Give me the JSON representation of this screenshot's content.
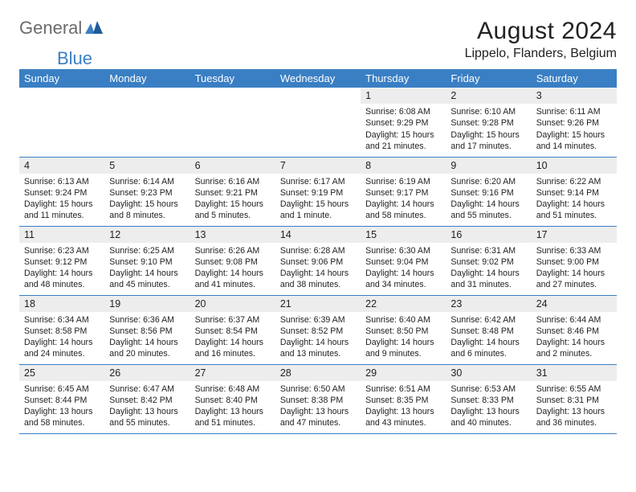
{
  "logo": {
    "general": "General",
    "blue": "Blue"
  },
  "header": {
    "title": "August 2024",
    "location": "Lippelo, Flanders, Belgium"
  },
  "colors": {
    "accent": "#3a7fc4",
    "header_bg": "#3a7fc4",
    "day_num_bg": "#ededed",
    "text": "#222222",
    "logo_gray": "#6b6b6b",
    "logo_blue": "#3a7fc4"
  },
  "weekdays": [
    "Sunday",
    "Monday",
    "Tuesday",
    "Wednesday",
    "Thursday",
    "Friday",
    "Saturday"
  ],
  "first_weekday_index": 4,
  "days": [
    {
      "n": 1,
      "sunrise": "6:08 AM",
      "sunset": "9:29 PM",
      "daylight": "15 hours and 21 minutes."
    },
    {
      "n": 2,
      "sunrise": "6:10 AM",
      "sunset": "9:28 PM",
      "daylight": "15 hours and 17 minutes."
    },
    {
      "n": 3,
      "sunrise": "6:11 AM",
      "sunset": "9:26 PM",
      "daylight": "15 hours and 14 minutes."
    },
    {
      "n": 4,
      "sunrise": "6:13 AM",
      "sunset": "9:24 PM",
      "daylight": "15 hours and 11 minutes."
    },
    {
      "n": 5,
      "sunrise": "6:14 AM",
      "sunset": "9:23 PM",
      "daylight": "15 hours and 8 minutes."
    },
    {
      "n": 6,
      "sunrise": "6:16 AM",
      "sunset": "9:21 PM",
      "daylight": "15 hours and 5 minutes."
    },
    {
      "n": 7,
      "sunrise": "6:17 AM",
      "sunset": "9:19 PM",
      "daylight": "15 hours and 1 minute."
    },
    {
      "n": 8,
      "sunrise": "6:19 AM",
      "sunset": "9:17 PM",
      "daylight": "14 hours and 58 minutes."
    },
    {
      "n": 9,
      "sunrise": "6:20 AM",
      "sunset": "9:16 PM",
      "daylight": "14 hours and 55 minutes."
    },
    {
      "n": 10,
      "sunrise": "6:22 AM",
      "sunset": "9:14 PM",
      "daylight": "14 hours and 51 minutes."
    },
    {
      "n": 11,
      "sunrise": "6:23 AM",
      "sunset": "9:12 PM",
      "daylight": "14 hours and 48 minutes."
    },
    {
      "n": 12,
      "sunrise": "6:25 AM",
      "sunset": "9:10 PM",
      "daylight": "14 hours and 45 minutes."
    },
    {
      "n": 13,
      "sunrise": "6:26 AM",
      "sunset": "9:08 PM",
      "daylight": "14 hours and 41 minutes."
    },
    {
      "n": 14,
      "sunrise": "6:28 AM",
      "sunset": "9:06 PM",
      "daylight": "14 hours and 38 minutes."
    },
    {
      "n": 15,
      "sunrise": "6:30 AM",
      "sunset": "9:04 PM",
      "daylight": "14 hours and 34 minutes."
    },
    {
      "n": 16,
      "sunrise": "6:31 AM",
      "sunset": "9:02 PM",
      "daylight": "14 hours and 31 minutes."
    },
    {
      "n": 17,
      "sunrise": "6:33 AM",
      "sunset": "9:00 PM",
      "daylight": "14 hours and 27 minutes."
    },
    {
      "n": 18,
      "sunrise": "6:34 AM",
      "sunset": "8:58 PM",
      "daylight": "14 hours and 24 minutes."
    },
    {
      "n": 19,
      "sunrise": "6:36 AM",
      "sunset": "8:56 PM",
      "daylight": "14 hours and 20 minutes."
    },
    {
      "n": 20,
      "sunrise": "6:37 AM",
      "sunset": "8:54 PM",
      "daylight": "14 hours and 16 minutes."
    },
    {
      "n": 21,
      "sunrise": "6:39 AM",
      "sunset": "8:52 PM",
      "daylight": "14 hours and 13 minutes."
    },
    {
      "n": 22,
      "sunrise": "6:40 AM",
      "sunset": "8:50 PM",
      "daylight": "14 hours and 9 minutes."
    },
    {
      "n": 23,
      "sunrise": "6:42 AM",
      "sunset": "8:48 PM",
      "daylight": "14 hours and 6 minutes."
    },
    {
      "n": 24,
      "sunrise": "6:44 AM",
      "sunset": "8:46 PM",
      "daylight": "14 hours and 2 minutes."
    },
    {
      "n": 25,
      "sunrise": "6:45 AM",
      "sunset": "8:44 PM",
      "daylight": "13 hours and 58 minutes."
    },
    {
      "n": 26,
      "sunrise": "6:47 AM",
      "sunset": "8:42 PM",
      "daylight": "13 hours and 55 minutes."
    },
    {
      "n": 27,
      "sunrise": "6:48 AM",
      "sunset": "8:40 PM",
      "daylight": "13 hours and 51 minutes."
    },
    {
      "n": 28,
      "sunrise": "6:50 AM",
      "sunset": "8:38 PM",
      "daylight": "13 hours and 47 minutes."
    },
    {
      "n": 29,
      "sunrise": "6:51 AM",
      "sunset": "8:35 PM",
      "daylight": "13 hours and 43 minutes."
    },
    {
      "n": 30,
      "sunrise": "6:53 AM",
      "sunset": "8:33 PM",
      "daylight": "13 hours and 40 minutes."
    },
    {
      "n": 31,
      "sunrise": "6:55 AM",
      "sunset": "8:31 PM",
      "daylight": "13 hours and 36 minutes."
    }
  ],
  "labels": {
    "sunrise": "Sunrise:",
    "sunset": "Sunset:",
    "daylight": "Daylight:"
  }
}
